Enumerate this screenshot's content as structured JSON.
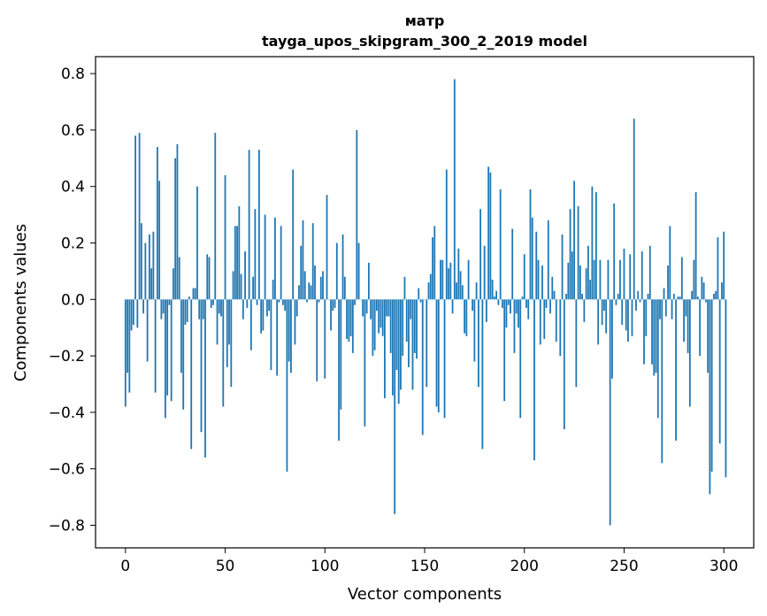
{
  "chart_data": {
    "type": "bar",
    "title": "матр",
    "subtitle": "tayga_upos_skipgram_300_2_2019 model",
    "xlabel": "Vector components",
    "ylabel": "Components values",
    "xlim": [
      -15,
      315
    ],
    "ylim": [
      -0.88,
      0.86
    ],
    "xticks": [
      0,
      50,
      100,
      150,
      200,
      250,
      300
    ],
    "yticks": [
      -0.8,
      -0.6,
      -0.4,
      -0.2,
      0.0,
      0.2,
      0.4,
      0.6,
      0.8
    ],
    "ytick_labels": [
      "−0.8",
      "−0.6",
      "−0.4",
      "−0.2",
      "0.0",
      "0.2",
      "0.4",
      "0.6",
      "0.8"
    ],
    "bar_color": "#1f77b4",
    "values": [
      -0.38,
      -0.26,
      -0.33,
      -0.11,
      -0.09,
      0.58,
      -0.1,
      0.59,
      0.27,
      -0.05,
      0.2,
      -0.22,
      0.23,
      0.11,
      0.24,
      -0.33,
      0.54,
      0.42,
      -0.07,
      -0.05,
      -0.42,
      -0.34,
      -0.02,
      -0.36,
      0.11,
      0.5,
      0.55,
      0.15,
      -0.26,
      -0.39,
      -0.09,
      -0.08,
      0.01,
      -0.53,
      0.04,
      0.04,
      0.4,
      -0.07,
      -0.47,
      -0.07,
      -0.56,
      0.16,
      0.15,
      -0.03,
      -0.02,
      0.59,
      -0.16,
      -0.05,
      -0.06,
      -0.38,
      0.44,
      -0.24,
      -0.16,
      -0.31,
      0.1,
      0.26,
      0.26,
      0.33,
      0.09,
      -0.07,
      0.17,
      -0.03,
      0.53,
      -0.18,
      0.08,
      0.32,
      -0.02,
      0.53,
      -0.12,
      -0.11,
      0.3,
      -0.06,
      -0.04,
      -0.25,
      0.07,
      0.29,
      -0.27,
      -0.01,
      0.26,
      -0.02,
      -0.04,
      -0.61,
      -0.22,
      -0.26,
      0.46,
      -0.16,
      -0.06,
      0.05,
      0.19,
      0.28,
      0.1,
      -0.01,
      0.06,
      0.05,
      0.27,
      0.12,
      -0.29,
      -0.01,
      0.08,
      0.1,
      -0.28,
      0.37,
      0.0,
      -0.11,
      -0.04,
      -0.03,
      0.2,
      -0.5,
      -0.39,
      0.23,
      0.08,
      -0.14,
      -0.15,
      -0.13,
      -0.19,
      -0.02,
      0.6,
      0.2,
      0.0,
      -0.06,
      -0.45,
      -0.05,
      0.13,
      -0.07,
      -0.2,
      -0.18,
      -0.04,
      -0.12,
      -0.1,
      -0.13,
      -0.35,
      -0.06,
      -0.06,
      -0.19,
      -0.34,
      -0.76,
      -0.25,
      -0.37,
      -0.32,
      -0.2,
      0.08,
      -0.15,
      -0.24,
      -0.07,
      -0.32,
      -0.19,
      -0.21,
      0.04,
      -0.01,
      -0.48,
      0.0,
      -0.31,
      0.06,
      0.09,
      0.22,
      0.26,
      -0.38,
      -0.4,
      0.14,
      0.14,
      -0.42,
      0.46,
      0.11,
      0.13,
      -0.05,
      0.78,
      0.06,
      0.18,
      0.1,
      0.05,
      -0.12,
      -0.13,
      0.14,
      0.0,
      -0.04,
      -0.22,
      0.06,
      -0.31,
      0.32,
      -0.53,
      0.19,
      -0.08,
      0.47,
      0.45,
      0.07,
      0.01,
      0.03,
      -0.02,
      0.39,
      -0.03,
      -0.36,
      -0.1,
      -0.02,
      -0.05,
      0.25,
      -0.19,
      -0.05,
      -0.1,
      -0.42,
      0.01,
      0.16,
      -0.03,
      -0.07,
      0.39,
      0.29,
      -0.57,
      0.24,
      0.14,
      -0.16,
      0.12,
      -0.14,
      -0.03,
      0.28,
      -0.05,
      0.08,
      0.03,
      -0.15,
      0.0,
      -0.2,
      0.23,
      -0.46,
      0.02,
      0.13,
      0.32,
      0.17,
      0.42,
      -0.31,
      0.33,
      0.12,
      0.02,
      -0.08,
      0.11,
      0.19,
      0.07,
      0.4,
      0.14,
      0.38,
      -0.16,
      0.14,
      -0.09,
      -0.04,
      -0.12,
      0.14,
      -0.8,
      -0.28,
      0.34,
      -0.02,
      0.02,
      0.14,
      -0.09,
      0.18,
      -0.11,
      -0.15,
      0.16,
      -0.13,
      0.64,
      -0.04,
      0.03,
      -0.01,
      0.17,
      -0.23,
      -0.13,
      0.02,
      0.19,
      -0.23,
      -0.27,
      -0.26,
      -0.42,
      -0.07,
      -0.58,
      0.04,
      -0.06,
      0.12,
      0.26,
      -0.07,
      0.02,
      -0.5,
      0.01,
      0.01,
      0.15,
      -0.15,
      -0.06,
      -0.19,
      -0.38,
      0.03,
      0.14,
      0.38,
      0.01,
      -0.2,
      0.08,
      0.06,
      -0.01,
      -0.26,
      -0.69,
      -0.61,
      0.02,
      0.03,
      0.22,
      -0.51,
      0.06,
      0.24,
      -0.63
    ]
  }
}
